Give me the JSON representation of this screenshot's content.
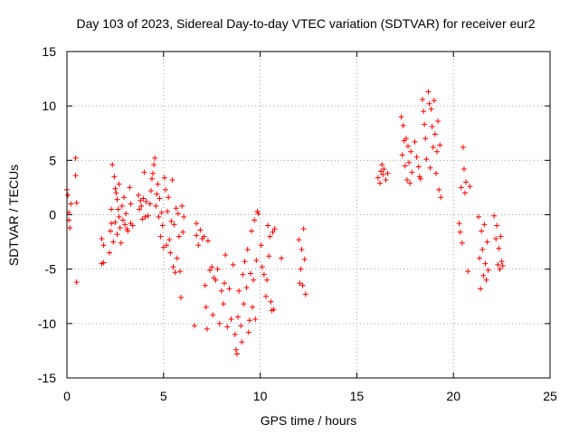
{
  "chart_data": {
    "type": "scatter",
    "title": "Day 103 of 2023, Sidereal Day-to-day VTEC variation (SDTVAR) for receiver eur2",
    "xlabel": "GPS time / hours",
    "ylabel": "SDTVAR / TECUs",
    "xlim": [
      0,
      25
    ],
    "ylim": [
      -15,
      15
    ],
    "xticks": [
      "0",
      "5",
      "10",
      "15",
      "20",
      "25"
    ],
    "yticks": [
      "-15",
      "-10",
      "-5",
      "0",
      "5",
      "10",
      "15"
    ],
    "grid": true,
    "marker": "+",
    "color": "#ff0000",
    "series": [
      {
        "name": "SDTVAR",
        "points": [
          [
            0.0,
            2.3
          ],
          [
            0.05,
            1.8
          ],
          [
            0.1,
            0.2
          ],
          [
            0.1,
            -0.5
          ],
          [
            0.15,
            -1.2
          ],
          [
            0.2,
            1.0
          ],
          [
            0.45,
            5.2
          ],
          [
            0.45,
            3.6
          ],
          [
            0.5,
            1.1
          ],
          [
            0.5,
            -6.2
          ],
          [
            1.8,
            -2.2
          ],
          [
            1.8,
            -4.5
          ],
          [
            1.9,
            -2.8
          ],
          [
            1.9,
            -4.4
          ],
          [
            2.2,
            -3.5
          ],
          [
            2.25,
            -1.5
          ],
          [
            2.3,
            -0.8
          ],
          [
            2.3,
            0.5
          ],
          [
            2.35,
            4.6
          ],
          [
            2.4,
            -2.5
          ],
          [
            2.45,
            3.5
          ],
          [
            2.5,
            2.4
          ],
          [
            2.5,
            -0.7
          ],
          [
            2.55,
            2.0
          ],
          [
            2.6,
            -1.8
          ],
          [
            2.6,
            1.4
          ],
          [
            2.65,
            0.5
          ],
          [
            2.7,
            -0.2
          ],
          [
            2.7,
            2.8
          ],
          [
            2.75,
            -1.2
          ],
          [
            2.8,
            -2.6
          ],
          [
            2.85,
            0.8
          ],
          [
            2.9,
            -0.5
          ],
          [
            2.95,
            1.6
          ],
          [
            3.0,
            -0.9
          ],
          [
            3.05,
            0.1
          ],
          [
            3.1,
            -1.3
          ],
          [
            3.15,
            -1.5
          ],
          [
            3.25,
            2.5
          ],
          [
            3.3,
            1.0
          ],
          [
            3.3,
            -0.8
          ],
          [
            3.4,
            -1.0
          ],
          [
            3.7,
            1.8
          ],
          [
            3.75,
            0.5
          ],
          [
            3.8,
            1.3
          ],
          [
            3.85,
            0.8
          ],
          [
            3.9,
            -0.4
          ],
          [
            3.95,
            1.5
          ],
          [
            4.0,
            3.9
          ],
          [
            4.05,
            -0.2
          ],
          [
            4.1,
            1.2
          ],
          [
            4.2,
            -0.1
          ],
          [
            4.3,
            1.0
          ],
          [
            4.35,
            2.2
          ],
          [
            4.4,
            3.3
          ],
          [
            4.45,
            3.8
          ],
          [
            4.5,
            4.6
          ],
          [
            4.55,
            5.2
          ],
          [
            4.6,
            0.8
          ],
          [
            4.65,
            1.9
          ],
          [
            4.7,
            2.8
          ],
          [
            4.75,
            -0.2
          ],
          [
            4.8,
            1.5
          ],
          [
            4.85,
            -2.0
          ],
          [
            4.9,
            0.2
          ],
          [
            4.95,
            -1.0
          ],
          [
            5.0,
            -3.0
          ],
          [
            5.05,
            3.4
          ],
          [
            5.1,
            2.3
          ],
          [
            5.15,
            -2.8
          ],
          [
            5.2,
            0.3
          ],
          [
            5.25,
            1.6
          ],
          [
            5.3,
            -2.3
          ],
          [
            5.35,
            -3.5
          ],
          [
            5.4,
            -0.6
          ],
          [
            5.45,
            3.2
          ],
          [
            5.5,
            -4.8
          ],
          [
            5.55,
            -0.9
          ],
          [
            5.6,
            -5.3
          ],
          [
            5.65,
            0.6
          ],
          [
            5.7,
            -4.0
          ],
          [
            5.75,
            0.1
          ],
          [
            5.8,
            -2.0
          ],
          [
            5.85,
            -5.2
          ],
          [
            5.9,
            -7.6
          ],
          [
            5.95,
            0.8
          ],
          [
            6.0,
            -1.6
          ],
          [
            6.05,
            -0.2
          ],
          [
            6.6,
            -10.2
          ],
          [
            6.7,
            -1.9
          ],
          [
            6.7,
            -0.8
          ],
          [
            6.8,
            -2.8
          ],
          [
            6.9,
            -1.4
          ],
          [
            7.0,
            -2.2
          ],
          [
            7.1,
            -2.0
          ],
          [
            7.15,
            -6.5
          ],
          [
            7.2,
            -8.5
          ],
          [
            7.25,
            -10.5
          ],
          [
            7.3,
            -2.4
          ],
          [
            7.4,
            -5.1
          ],
          [
            7.5,
            -4.8
          ],
          [
            7.55,
            -9.2
          ],
          [
            7.6,
            -5.8
          ],
          [
            7.7,
            -6.0
          ],
          [
            7.8,
            -5.0
          ],
          [
            7.9,
            -10.0
          ],
          [
            8.0,
            -7.0
          ],
          [
            8.1,
            -8.2
          ],
          [
            8.15,
            -6.3
          ],
          [
            8.2,
            -3.7
          ],
          [
            8.3,
            -10.3
          ],
          [
            8.4,
            -6.8
          ],
          [
            8.5,
            -9.6
          ],
          [
            8.6,
            -4.6
          ],
          [
            8.7,
            -11.0
          ],
          [
            8.75,
            -12.4
          ],
          [
            8.8,
            -12.8
          ],
          [
            8.85,
            -9.4
          ],
          [
            8.9,
            -7.0
          ],
          [
            9.0,
            -10.2
          ],
          [
            9.05,
            -11.7
          ],
          [
            9.1,
            -5.5
          ],
          [
            9.15,
            -8.2
          ],
          [
            9.2,
            -4.3
          ],
          [
            9.3,
            -6.7
          ],
          [
            9.35,
            -3.2
          ],
          [
            9.4,
            -10.8
          ],
          [
            9.45,
            -9.7
          ],
          [
            9.5,
            -5.4
          ],
          [
            9.55,
            -1.5
          ],
          [
            9.6,
            -8.5
          ],
          [
            9.65,
            -6.0
          ],
          [
            9.7,
            -0.5
          ],
          [
            9.75,
            -9.6
          ],
          [
            9.8,
            -4.2
          ],
          [
            9.85,
            0.3
          ],
          [
            9.9,
            0.1
          ],
          [
            10.05,
            -2.8
          ],
          [
            10.1,
            -4.8
          ],
          [
            10.2,
            -5.5
          ],
          [
            10.3,
            -7.5
          ],
          [
            10.35,
            -6.0
          ],
          [
            10.4,
            -1.0
          ],
          [
            10.45,
            -3.8
          ],
          [
            10.5,
            -2.0
          ],
          [
            10.55,
            -8.0
          ],
          [
            10.6,
            -8.8
          ],
          [
            10.65,
            -1.6
          ],
          [
            10.7,
            -8.7
          ],
          [
            10.75,
            -1.3
          ],
          [
            11.1,
            -4.0
          ],
          [
            12.0,
            -2.3
          ],
          [
            12.05,
            -6.3
          ],
          [
            12.1,
            -5.0
          ],
          [
            12.15,
            -3.2
          ],
          [
            12.2,
            -6.5
          ],
          [
            12.25,
            -1.3
          ],
          [
            12.3,
            -4.1
          ],
          [
            12.35,
            -7.3
          ],
          [
            16.1,
            3.4
          ],
          [
            16.2,
            2.9
          ],
          [
            16.25,
            4.0
          ],
          [
            16.3,
            4.6
          ],
          [
            16.35,
            3.7
          ],
          [
            16.4,
            4.2
          ],
          [
            16.5,
            3.2
          ],
          [
            16.6,
            3.8
          ],
          [
            17.3,
            9.0
          ],
          [
            17.35,
            5.5
          ],
          [
            17.4,
            8.2
          ],
          [
            17.45,
            6.8
          ],
          [
            17.5,
            4.5
          ],
          [
            17.55,
            7.0
          ],
          [
            17.6,
            3.2
          ],
          [
            17.65,
            6.3
          ],
          [
            17.7,
            4.8
          ],
          [
            17.75,
            2.9
          ],
          [
            17.8,
            5.8
          ],
          [
            17.85,
            3.9
          ],
          [
            18.0,
            6.7
          ],
          [
            18.1,
            5.3
          ],
          [
            18.2,
            4.4
          ],
          [
            18.25,
            3.5
          ],
          [
            18.3,
            3.3
          ],
          [
            18.4,
            10.6
          ],
          [
            18.45,
            9.5
          ],
          [
            18.5,
            8.3
          ],
          [
            18.55,
            7.0
          ],
          [
            18.6,
            5.1
          ],
          [
            18.7,
            11.3
          ],
          [
            18.75,
            10.2
          ],
          [
            18.8,
            4.3
          ],
          [
            18.85,
            9.7
          ],
          [
            18.9,
            8.1
          ],
          [
            18.95,
            6.2
          ],
          [
            19.0,
            10.5
          ],
          [
            19.05,
            7.4
          ],
          [
            19.1,
            3.8
          ],
          [
            19.15,
            5.8
          ],
          [
            19.2,
            8.6
          ],
          [
            19.25,
            2.3
          ],
          [
            19.3,
            6.4
          ],
          [
            19.35,
            1.6
          ],
          [
            20.3,
            -0.8
          ],
          [
            20.35,
            -1.6
          ],
          [
            20.4,
            2.5
          ],
          [
            20.45,
            -2.6
          ],
          [
            20.5,
            6.2
          ],
          [
            20.55,
            4.2
          ],
          [
            20.6,
            2.0
          ],
          [
            20.65,
            3.0
          ],
          [
            20.75,
            -5.2
          ],
          [
            20.85,
            2.6
          ],
          [
            21.3,
            -0.2
          ],
          [
            21.35,
            -4.0
          ],
          [
            21.4,
            -6.8
          ],
          [
            21.45,
            -1.5
          ],
          [
            21.5,
            -3.2
          ],
          [
            21.55,
            -5.6
          ],
          [
            21.6,
            -0.9
          ],
          [
            21.65,
            -4.5
          ],
          [
            21.7,
            -6.0
          ],
          [
            21.75,
            -2.5
          ],
          [
            21.8,
            -5.1
          ],
          [
            22.1,
            -0.1
          ],
          [
            22.2,
            -2.2
          ],
          [
            22.25,
            -1.0
          ],
          [
            22.3,
            -4.6
          ],
          [
            22.35,
            -3.1
          ],
          [
            22.4,
            -5.0
          ],
          [
            22.45,
            -2.0
          ],
          [
            22.5,
            -4.3
          ],
          [
            22.55,
            -4.7
          ]
        ]
      }
    ]
  }
}
